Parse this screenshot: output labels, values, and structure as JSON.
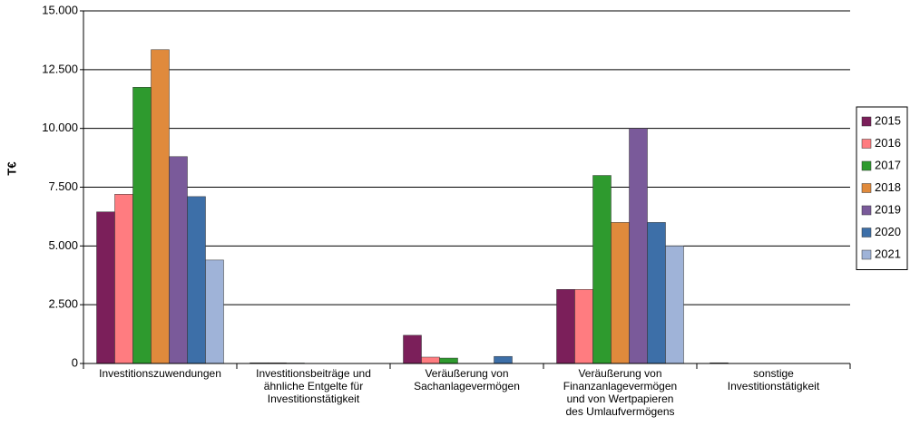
{
  "chart_data": {
    "type": "bar",
    "y_label": "T€",
    "categories": [
      "Investitionszuwendungen",
      "Investitionsbeiträge und\nähnliche Entgelte für\nInvestitionstätigkeit",
      "Veräußerung von\nSachanlagevermögen",
      "Veräußerung von\nFinanzanlagevermögen\nund von Wertpapieren\ndes Umlaufvermögens",
      "sonstige\nInvestitionstätigkeit"
    ],
    "series": [
      {
        "name": "2015",
        "color": "#7b1f5a",
        "values": [
          6450,
          30,
          1200,
          3150,
          30
        ]
      },
      {
        "name": "2016",
        "color": "#ff7c80",
        "values": [
          7200,
          30,
          270,
          3150,
          0
        ]
      },
      {
        "name": "2017",
        "color": "#2e9a2e",
        "values": [
          11750,
          20,
          230,
          8000,
          0
        ]
      },
      {
        "name": "2018",
        "color": "#e08a3c",
        "values": [
          13350,
          0,
          0,
          6000,
          0
        ]
      },
      {
        "name": "2019",
        "color": "#7a5a9a",
        "values": [
          8800,
          0,
          0,
          10000,
          0
        ]
      },
      {
        "name": "2020",
        "color": "#3d6fa8",
        "values": [
          7100,
          0,
          300,
          6000,
          0
        ]
      },
      {
        "name": "2021",
        "color": "#9fb3d8",
        "values": [
          4400,
          0,
          0,
          5000,
          0
        ]
      }
    ],
    "ylim": [
      0,
      15000
    ],
    "yticks": [
      0,
      {
        "value": 2500,
        "label": "2.500"
      },
      {
        "value": 5000,
        "label": "5.000"
      },
      {
        "value": 7500,
        "label": "7.500"
      },
      {
        "value": 10000,
        "label": "10.000"
      },
      {
        "value": 12500,
        "label": "12.500"
      },
      {
        "value": 15000,
        "label": "15.000"
      }
    ],
    "grid": true,
    "legend": "right"
  }
}
